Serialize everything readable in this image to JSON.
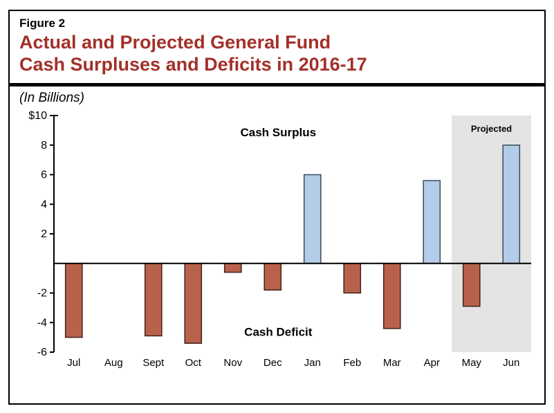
{
  "header": {
    "figure_label": "Figure 2",
    "title_line1": "Actual and Projected General Fund",
    "title_line2": "Cash Surpluses and Deficits in 2016-17",
    "title_color": "#a33029",
    "subtitle": "(In Billions)"
  },
  "chart": {
    "type": "bar",
    "background_color": "#ffffff",
    "projected_band": {
      "start_index": 10,
      "end_index": 11,
      "fill": "#e4e4e4"
    },
    "projected_label": "Projected",
    "categories": [
      "Jul",
      "Aug",
      "Sept",
      "Oct",
      "Nov",
      "Dec",
      "Jan",
      "Feb",
      "Mar",
      "Apr",
      "May",
      "Jun"
    ],
    "values": [
      -5.0,
      0,
      -4.9,
      -5.4,
      -0.6,
      -1.8,
      6.0,
      -2.0,
      -4.4,
      5.6,
      -2.9,
      8.0
    ],
    "bar_width": 0.42,
    "positive_fill": "#b3cce8",
    "positive_stroke": "#3a4a5a",
    "negative_fill": "#b9624b",
    "negative_stroke": "#402018",
    "ylim": [
      -6,
      10
    ],
    "yticks": [
      -6,
      -4,
      -2,
      2,
      4,
      6,
      8,
      10
    ],
    "ylabels": [
      "-6",
      "-4",
      "-2",
      "2",
      "4",
      "6",
      "8",
      "$10"
    ],
    "axis_color": "#000000",
    "surplus_label": "Cash Surplus",
    "deficit_label": "Cash Deficit",
    "font_sizes": {
      "figure_label": 17,
      "title": 27,
      "subtitle": 19,
      "ytick": 16,
      "xtick": 15,
      "annotation": 17,
      "projected": 13
    }
  }
}
